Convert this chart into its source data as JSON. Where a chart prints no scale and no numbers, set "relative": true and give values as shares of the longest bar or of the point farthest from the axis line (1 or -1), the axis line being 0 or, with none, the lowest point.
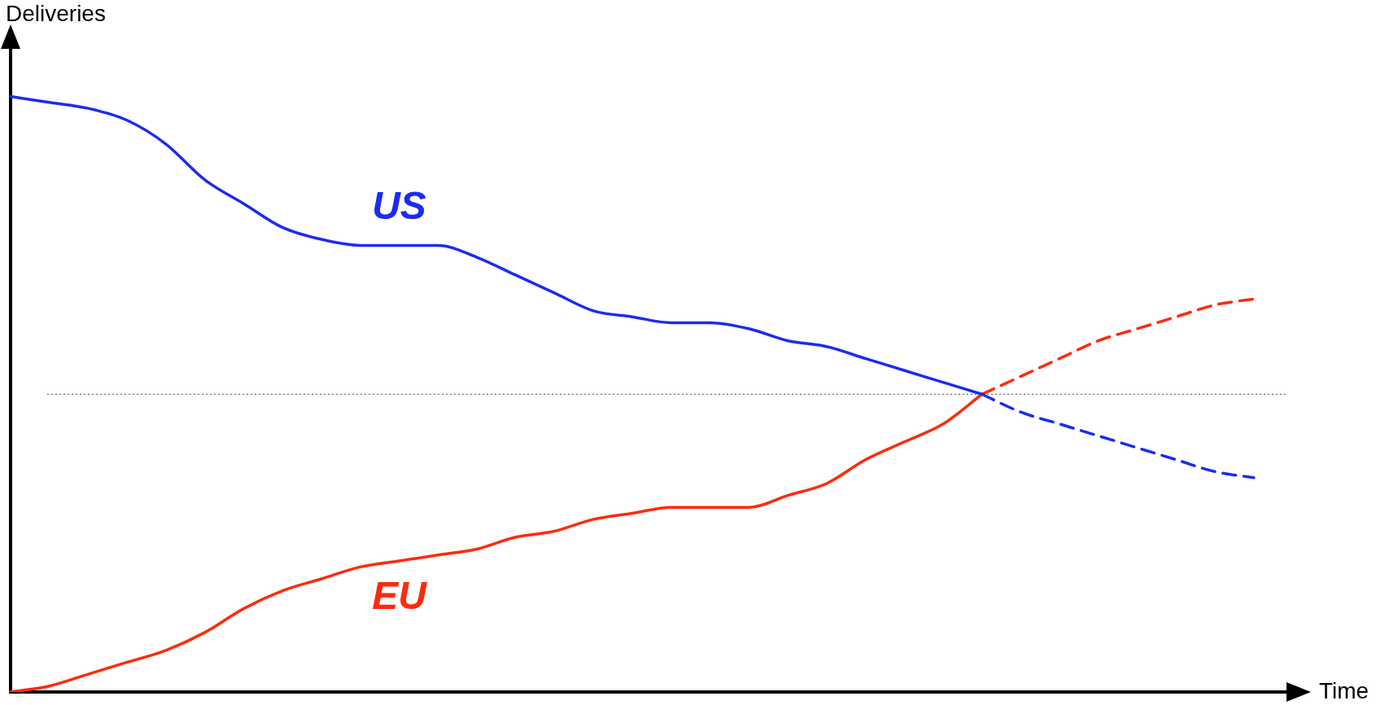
{
  "chart_data": {
    "type": "line",
    "relative": true,
    "xlabel": "Time",
    "ylabel": "Deliveries",
    "categories": [
      null,
      null,
      null,
      null,
      null,
      null,
      null,
      null,
      null,
      null,
      null,
      null,
      null,
      null,
      null,
      null,
      null,
      null,
      null,
      null,
      null,
      null,
      null,
      null,
      null,
      null,
      null,
      null,
      null,
      null,
      null,
      null,
      null
    ],
    "series": [
      {
        "name": "US",
        "color": "#1a2cf0",
        "line_style": "solid",
        "values": [
          1.0,
          0.99,
          0.98,
          0.96,
          0.92,
          0.86,
          0.82,
          0.78,
          0.76,
          0.75,
          0.75,
          0.75,
          0.73,
          0.7,
          0.67,
          0.64,
          0.63,
          0.62,
          0.62,
          0.61,
          0.59,
          0.58,
          0.56,
          0.54,
          0.52,
          0.5,
          null,
          null,
          null,
          null,
          null,
          null,
          null
        ]
      },
      {
        "color": "#1a2cf0",
        "line_style": "dashed",
        "values": [
          null,
          null,
          null,
          null,
          null,
          null,
          null,
          null,
          null,
          null,
          null,
          null,
          null,
          null,
          null,
          null,
          null,
          null,
          null,
          null,
          null,
          null,
          null,
          null,
          null,
          0.5,
          0.47,
          0.45,
          0.43,
          0.41,
          0.39,
          0.37,
          0.36
        ]
      },
      {
        "name": "EU",
        "color": "#ff2a0a",
        "line_style": "solid",
        "values": [
          0,
          0.01,
          0.03,
          0.05,
          0.07,
          0.1,
          0.14,
          0.17,
          0.19,
          0.21,
          0.22,
          0.23,
          0.24,
          0.26,
          0.27,
          0.29,
          0.3,
          0.31,
          0.31,
          0.31,
          0.33,
          0.35,
          0.39,
          0.42,
          0.45,
          0.5,
          null,
          null,
          null,
          null,
          null,
          null,
          null
        ]
      },
      {
        "color": "#ff2a0a",
        "line_style": "dashed",
        "values": [
          null,
          null,
          null,
          null,
          null,
          null,
          null,
          null,
          null,
          null,
          null,
          null,
          null,
          null,
          null,
          null,
          null,
          null,
          null,
          null,
          null,
          null,
          null,
          null,
          null,
          0.5,
          0.53,
          0.56,
          0.59,
          0.61,
          0.63,
          0.65,
          0.66
        ]
      }
    ],
    "ref_lines": [
      {
        "axis": "y",
        "value": 0.5,
        "color": "#444444",
        "line_style": "dotted"
      }
    ],
    "legend": false,
    "grid": false
  }
}
